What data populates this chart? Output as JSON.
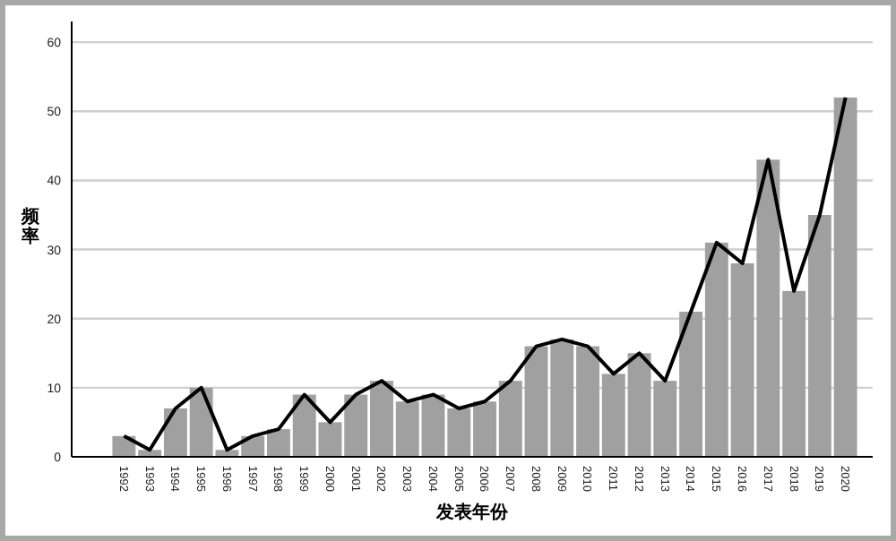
{
  "chart_data": {
    "type": "bar",
    "xlabel": "发表年份",
    "ylabel": "频率",
    "categories": [
      "1992",
      "1993",
      "1994",
      "1995",
      "1996",
      "1997",
      "1998",
      "1999",
      "2000",
      "2001",
      "2002",
      "2003",
      "2004",
      "2005",
      "2006",
      "2007",
      "2008",
      "2009",
      "2010",
      "2011",
      "2012",
      "2013",
      "2014",
      "2015",
      "2016",
      "2017",
      "2018",
      "2019",
      "2020"
    ],
    "series": [
      {
        "color": "#a0a0a0",
        "values": [
          3,
          1,
          7,
          10,
          1,
          3,
          4,
          9,
          5,
          9,
          11,
          8,
          9,
          7,
          8,
          11,
          16,
          17,
          16,
          12,
          15,
          11,
          21,
          31,
          28,
          43,
          24,
          35,
          52
        ]
      },
      {
        "type": "line",
        "color": "#000000",
        "values": [
          3,
          1,
          7,
          10,
          1,
          3,
          4,
          9,
          5,
          9,
          11,
          8,
          9,
          7,
          8,
          11,
          16,
          17,
          16,
          12,
          15,
          11,
          21,
          31,
          28,
          43,
          24,
          35,
          52
        ]
      }
    ],
    "ylim": [
      0,
      63
    ],
    "yticks": [
      0,
      10,
      20,
      30,
      40,
      50,
      60
    ],
    "grid": "y"
  }
}
